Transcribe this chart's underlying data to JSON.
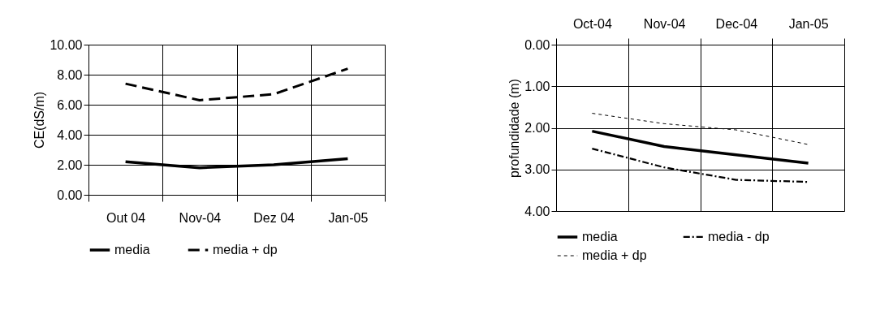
{
  "chart_data": [
    {
      "type": "line",
      "ylabel": "CE(dS/m)",
      "categories": [
        "Out 04",
        "Nov-04",
        "Dez 04",
        "Jan-05"
      ],
      "ylim": [
        0,
        10
      ],
      "yticks": [
        {
          "value": 0,
          "label": "0.00"
        },
        {
          "value": 2,
          "label": "2.00"
        },
        {
          "value": 4,
          "label": "4.00"
        },
        {
          "value": 6,
          "label": "6.00"
        },
        {
          "value": 8,
          "label": "8.00"
        },
        {
          "value": 10,
          "label": "10.00"
        }
      ],
      "grid": true,
      "legend": "bottom",
      "marker": "none",
      "series": [
        {
          "name": "media",
          "color": "#000000",
          "line_style": "solid",
          "values": [
            2.2,
            1.8,
            2.0,
            2.4
          ]
        },
        {
          "name": "media + dp",
          "color": "#000000",
          "line_style": "dashed",
          "values": [
            7.4,
            6.3,
            6.7,
            8.4
          ]
        }
      ]
    },
    {
      "type": "line",
      "ylabel": "profundidade (m)",
      "categories": [
        "Oct-04",
        "Nov-04",
        "Dec-04",
        "Jan-05"
      ],
      "ylim": [
        4,
        0
      ],
      "yticks": [
        {
          "value": 0,
          "label": "0.00"
        },
        {
          "value": 1,
          "label": "1.00"
        },
        {
          "value": 2,
          "label": "2.00"
        },
        {
          "value": 3,
          "label": "3.00"
        },
        {
          "value": 4,
          "label": "4.00"
        }
      ],
      "grid": true,
      "legend": "bottom",
      "marker": "none",
      "series": [
        {
          "name": "media",
          "color": "#000000",
          "line_style": "solid",
          "values": [
            2.08,
            2.45,
            2.65,
            2.85
          ]
        },
        {
          "name": "media - dp",
          "color": "#000000",
          "line_style": "dashdot",
          "values": [
            2.5,
            2.95,
            3.25,
            3.3
          ]
        },
        {
          "name": "media + dp",
          "color": "#000000",
          "line_style": "dotted",
          "values": [
            1.65,
            1.9,
            2.05,
            2.4
          ]
        }
      ]
    }
  ]
}
